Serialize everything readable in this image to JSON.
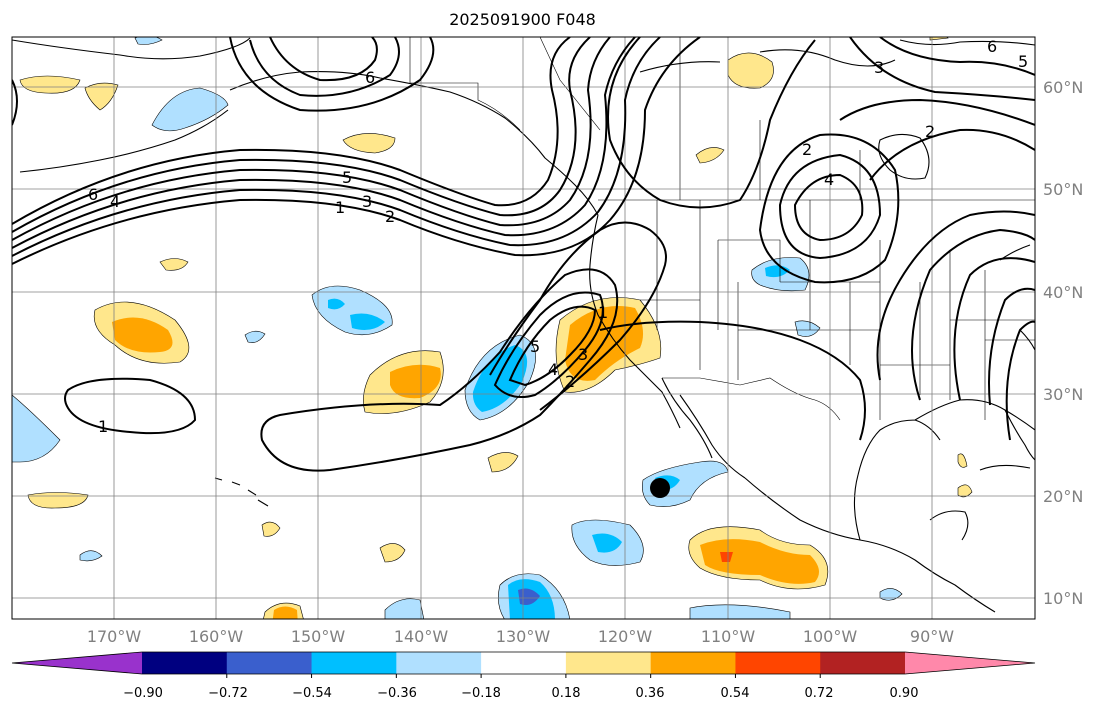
{
  "title": "2025091900 F048",
  "longitude_labels": [
    "170°W",
    "160°W",
    "150°W",
    "140°W",
    "130°W",
    "120°W",
    "110°W",
    "100°W",
    "90°W"
  ],
  "latitude_labels": [
    "60°N",
    "50°N",
    "40°N",
    "30°N",
    "20°N",
    "10°N"
  ],
  "colorbar": {
    "tick_labels": [
      "−0.90",
      "−0.72",
      "−0.54",
      "−0.36",
      "−0.18",
      "0.18",
      "0.36",
      "0.54",
      "0.72",
      "0.90"
    ],
    "colors": [
      "#9932cc",
      "#000080",
      "#3a5fcd",
      "#00bfff",
      "#b0e0ff",
      "#ffffff",
      "#ffe78c",
      "#ffa500",
      "#ff4500",
      "#b22222",
      "#ff88aa"
    ]
  },
  "contour_labels": [
    "1",
    "2",
    "3",
    "4",
    "5",
    "6",
    "1",
    "2",
    "3",
    "4",
    "5",
    "6",
    "2",
    "4",
    "2",
    "3",
    "6",
    "5",
    "1"
  ],
  "colors": {
    "land_line": "#000000",
    "grid": "#808080",
    "fill_pos1": "#ffe78c",
    "fill_pos2": "#ffa500",
    "fill_pos3": "#ff4500",
    "fill_neg1": "#b0e0ff",
    "fill_neg2": "#00bfff",
    "fill_neg3": "#3a5fcd"
  },
  "marker": "tropical-center"
}
